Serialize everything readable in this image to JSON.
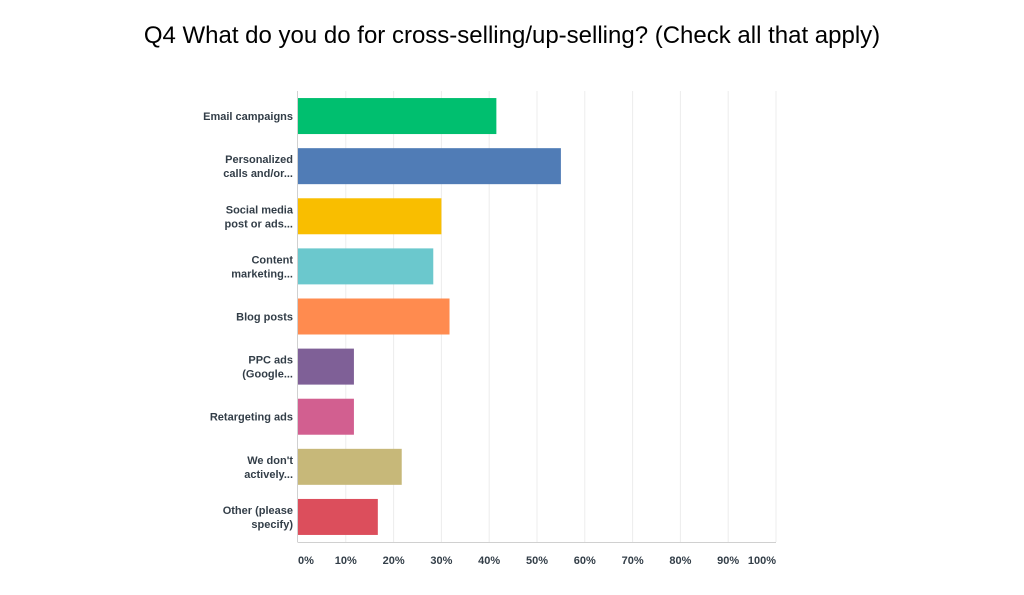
{
  "title": "Q4 What do you do for cross-selling/up-selling? (Check all that apply)",
  "chart_data": {
    "type": "bar",
    "orientation": "horizontal",
    "title": "Q4 What do you do for cross-selling/up-selling? (Check all that apply)",
    "categories": [
      [
        "Email campaigns"
      ],
      [
        "Personalized",
        "calls and/or..."
      ],
      [
        "Social media",
        "post or ads..."
      ],
      [
        "Content",
        "marketing..."
      ],
      [
        "Blog posts"
      ],
      [
        "PPC ads",
        "(Google..."
      ],
      [
        "Retargeting ads"
      ],
      [
        "We don't",
        "actively..."
      ],
      [
        "Other (please",
        "specify)"
      ]
    ],
    "values": [
      41.5,
      55,
      30,
      28.3,
      31.7,
      11.7,
      11.7,
      21.7,
      16.7
    ],
    "colors": [
      "#00bf6f",
      "#507cb6",
      "#f9be00",
      "#6bc8cd",
      "#ff8b4f",
      "#7f6097",
      "#d25f90",
      "#c7b879",
      "#dc4e5c"
    ],
    "xticks": [
      "0%",
      "10%",
      "20%",
      "30%",
      "40%",
      "50%",
      "60%",
      "70%",
      "80%",
      "90%",
      "100%"
    ],
    "xlim": [
      0,
      100
    ],
    "grid": true
  }
}
